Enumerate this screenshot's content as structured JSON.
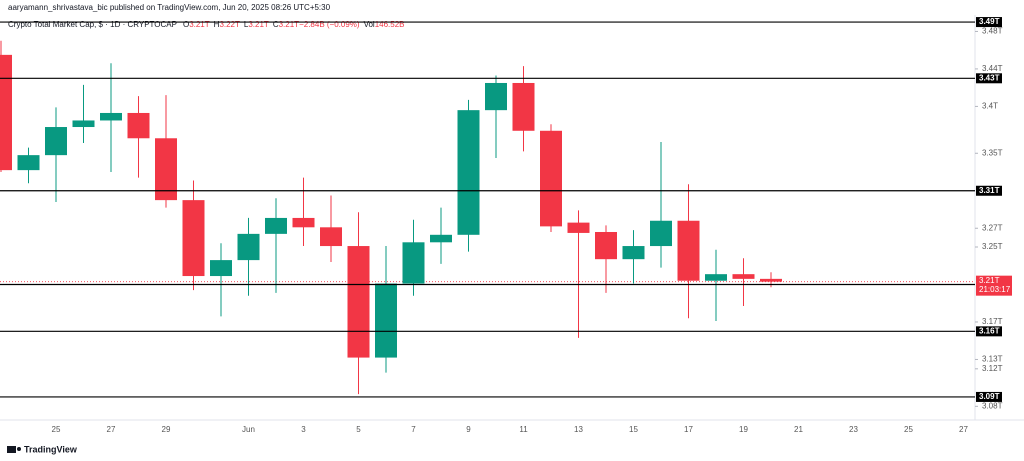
{
  "header": "aaryamann_shrivastava_bic published on TradingView.com, Jun 20, 2025 08:26 UTC+5:30",
  "footer": "TradingView",
  "chart_data": {
    "type": "candlestick",
    "symbol": "Crypto Total Market Cap, $ · 1D · CRYPTOCAP",
    "legend_values": [
      {
        "key": "O",
        "text": "3.21T"
      },
      {
        "key": "H",
        "text": "3.22T"
      },
      {
        "key": "L",
        "text": "3.21T"
      },
      {
        "key": "C",
        "text": "3.21T"
      },
      {
        "key": "",
        "text": "−2.84B (−0.09%)"
      },
      {
        "key": "Vol",
        "text": "146.52B"
      }
    ],
    "categories": [
      null,
      null,
      "25",
      null,
      "27",
      null,
      "29",
      null,
      null,
      "Jun",
      null,
      "3",
      null,
      "5",
      null,
      "7",
      null,
      "9",
      null,
      "11",
      null,
      "13",
      null,
      "15",
      null,
      "17",
      null,
      "19",
      null,
      "21",
      null,
      "23",
      null,
      "25",
      null,
      "27"
    ],
    "open": [
      3.455,
      3.332,
      3.348,
      3.378,
      3.385,
      3.393,
      3.366,
      3.3,
      3.219,
      3.236,
      3.264,
      3.281,
      3.271,
      3.251,
      3.132,
      3.211,
      3.255,
      3.263,
      3.396,
      3.425,
      3.374,
      3.276,
      3.266,
      3.237,
      3.251,
      3.278,
      3.214,
      3.221,
      3.216,
      null,
      null,
      null,
      null,
      null,
      null,
      null
    ],
    "high": [
      3.47,
      3.356,
      3.399,
      3.423,
      3.446,
      3.411,
      3.412,
      3.321,
      3.254,
      3.281,
      3.302,
      3.324,
      3.305,
      3.287,
      3.251,
      3.279,
      3.292,
      3.407,
      3.433,
      3.443,
      3.381,
      3.289,
      3.273,
      3.268,
      3.362,
      3.317,
      3.247,
      3.238,
      3.223,
      null,
      null,
      null,
      null,
      null,
      null,
      null
    ],
    "low": [
      3.33,
      3.318,
      3.298,
      3.361,
      3.33,
      3.324,
      3.292,
      3.204,
      3.176,
      3.198,
      3.201,
      3.251,
      3.234,
      3.093,
      3.116,
      3.198,
      3.232,
      3.245,
      3.345,
      3.352,
      3.266,
      3.153,
      3.201,
      3.211,
      3.228,
      3.174,
      3.171,
      3.187,
      3.207,
      null,
      null,
      null,
      null,
      null,
      null,
      null
    ],
    "close": [
      3.332,
      3.348,
      3.378,
      3.385,
      3.393,
      3.366,
      3.3,
      3.219,
      3.236,
      3.264,
      3.281,
      3.271,
      3.251,
      3.132,
      3.211,
      3.255,
      3.263,
      3.396,
      3.425,
      3.374,
      3.272,
      3.265,
      3.237,
      3.251,
      3.278,
      3.214,
      3.221,
      3.216,
      3.213,
      null,
      null,
      null,
      null,
      null,
      null,
      null
    ],
    "up_color": "#089981",
    "down_color": "#f23645",
    "ylim": [
      3.075,
      3.505
    ],
    "yticks": [
      {
        "value": 3.48,
        "label": "3.48T"
      },
      {
        "value": 3.44,
        "label": "3.44T"
      },
      {
        "value": 3.4,
        "label": "3.4T"
      },
      {
        "value": 3.35,
        "label": "3.35T"
      },
      {
        "value": 3.27,
        "label": "3.27T"
      },
      {
        "value": 3.25,
        "label": "3.25T"
      },
      {
        "value": 3.17,
        "label": "3.17T"
      },
      {
        "value": 3.13,
        "label": "3.13T"
      },
      {
        "value": 3.12,
        "label": "3.12T"
      },
      {
        "value": 3.08,
        "label": "3.08T"
      }
    ],
    "levels": [
      {
        "value": 3.49,
        "label": "3.49T"
      },
      {
        "value": 3.43,
        "label": "3.43T"
      },
      {
        "value": 3.31,
        "label": "3.31T"
      },
      {
        "value": 3.21,
        "label": "3.21T"
      },
      {
        "value": 3.16,
        "label": "3.16T"
      },
      {
        "value": 3.09,
        "label": "3.09T"
      }
    ],
    "last_price": {
      "value": 3.213,
      "label": "3.21T",
      "countdown": "21:03:17"
    }
  }
}
